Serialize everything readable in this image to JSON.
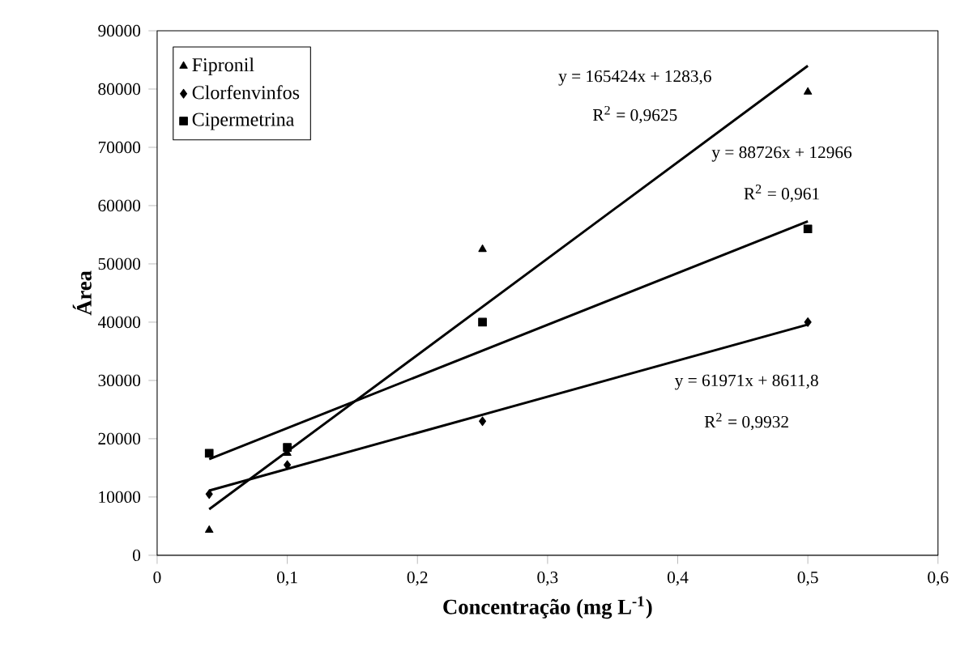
{
  "chart_data": {
    "type": "scatter",
    "xlabel": "Concentração (mg L$^{-1}$)",
    "ylabel": "Área",
    "xlim": [
      0,
      0.6
    ],
    "xticks": [
      {
        "value": 0,
        "label": "0"
      },
      {
        "value": 0.1,
        "label": "0,1"
      },
      {
        "value": 0.2,
        "label": "0,2"
      },
      {
        "value": 0.3,
        "label": "0,3"
      },
      {
        "value": 0.4,
        "label": "0,4"
      },
      {
        "value": 0.5,
        "label": "0,5"
      },
      {
        "value": 0.6,
        "label": "0,6"
      }
    ],
    "ylim": [
      0,
      90000
    ],
    "yticks": [
      0,
      10000,
      20000,
      30000,
      40000,
      50000,
      60000,
      70000,
      80000,
      90000
    ],
    "grid": false,
    "legend": "top left",
    "series": [
      {
        "name": "Fipronil",
        "color": "#000000",
        "marker": "triangle",
        "x": [
          0.04,
          0.1,
          0.25,
          0.5
        ],
        "values": [
          4300,
          17500,
          52500,
          79500
        ]
      },
      {
        "name": "Clorfenvinfos",
        "color": "#000000",
        "marker": "diamond",
        "x": [
          0.04,
          0.1,
          0.25,
          0.5
        ],
        "values": [
          10500,
          15500,
          23000,
          40000
        ]
      },
      {
        "name": "Cipermetrina",
        "color": "#000000",
        "marker": "square",
        "x": [
          0.04,
          0.1,
          0.25,
          0.5
        ],
        "values": [
          17500,
          18500,
          40000,
          56000
        ]
      },
      {
        "type": "line",
        "color": "#000000",
        "marker": "none",
        "x": [
          0.04,
          0.5
        ],
        "values": [
          7900,
          84000
        ]
      },
      {
        "type": "line",
        "color": "#000000",
        "marker": "none",
        "x": [
          0.04,
          0.5
        ],
        "values": [
          11100,
          39600
        ]
      },
      {
        "type": "line",
        "color": "#000000",
        "marker": "none",
        "x": [
          0.04,
          0.5
        ],
        "values": [
          16500,
          57300
        ]
      }
    ],
    "annotations": [
      "y = 165424x + 1283,6",
      "R$^{2}$ = 0,9625",
      "y = 88726x + 12966",
      "R$^{2}$ = 0,961",
      "y = 61971x + 8611,8",
      "R$^{2}$ = 0,9932"
    ]
  }
}
